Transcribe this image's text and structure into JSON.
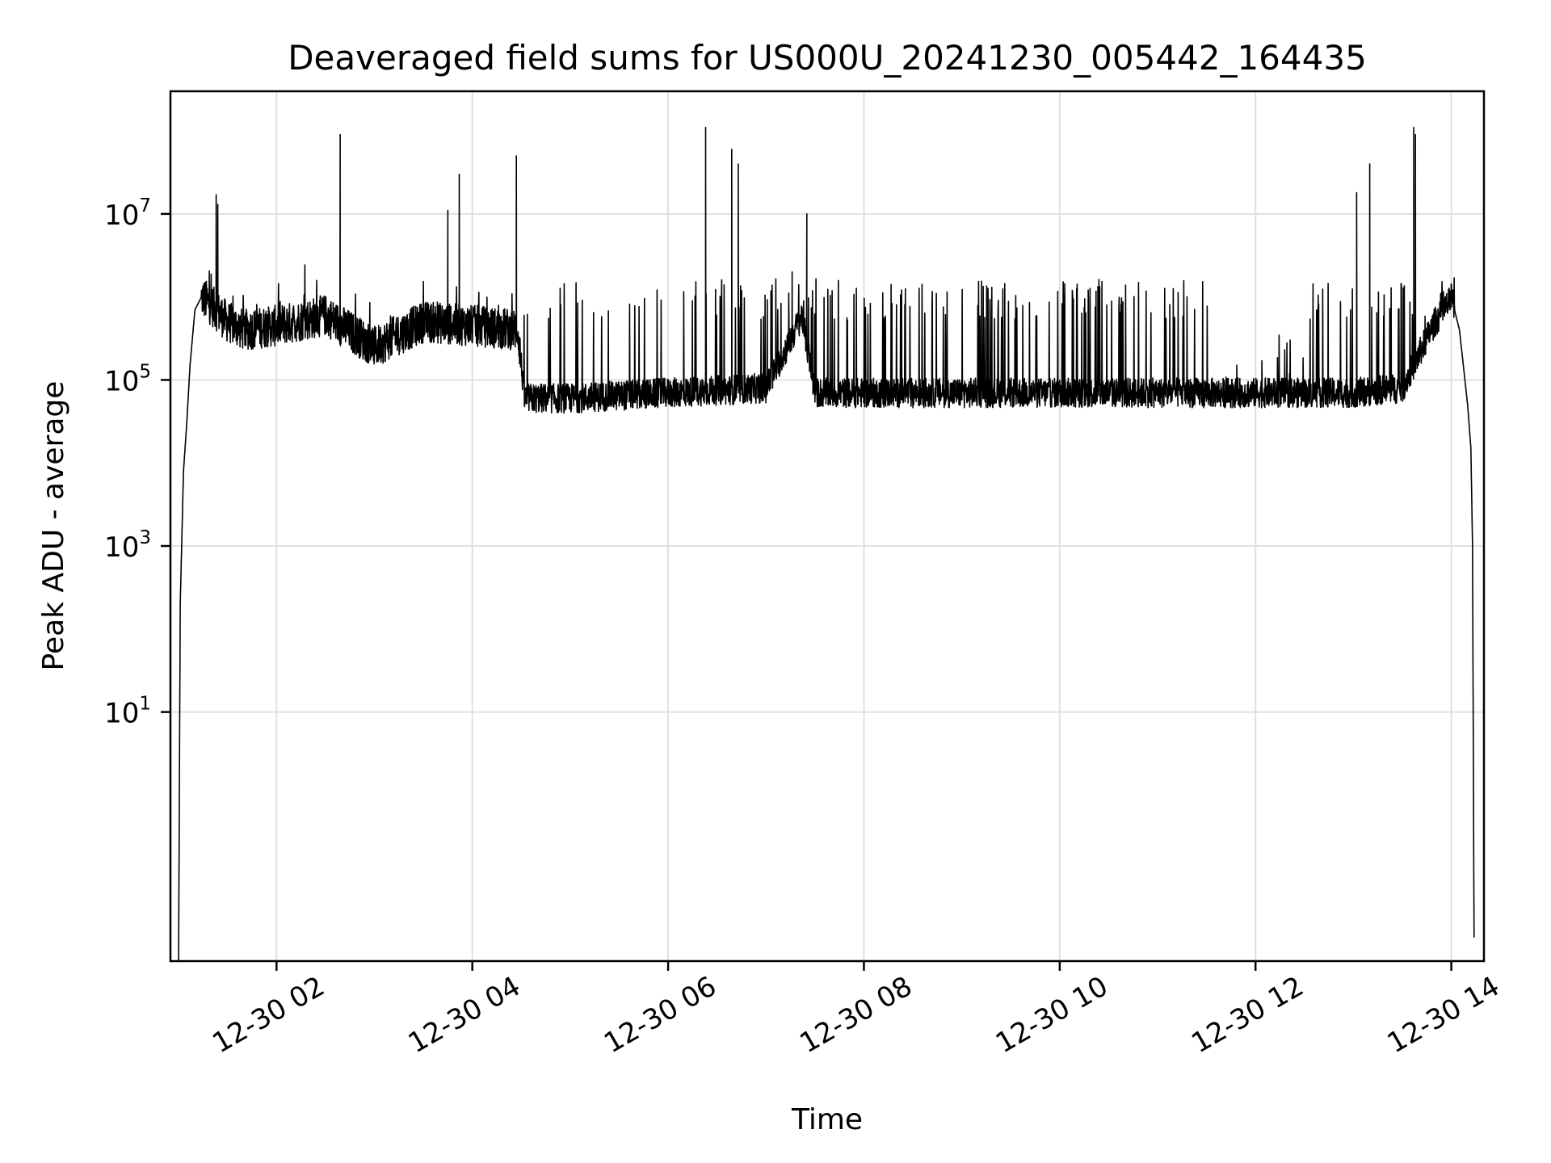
{
  "chart_data": {
    "type": "line",
    "title": "Deaveraged field sums for US000U_20241230_005442_164435",
    "xlabel": "Time",
    "ylabel": "Peak ADU - average",
    "yscale": "log",
    "xlim": [
      "2024-12-30 00:55",
      "2024-12-30 14:20"
    ],
    "ylim": [
      0.01,
      300000000
    ],
    "grid": true,
    "line_color": "#000000",
    "x_ticks": [
      "12-30 02",
      "12-30 04",
      "12-30 06",
      "12-30 08",
      "12-30 10",
      "12-30 12",
      "12-30 14"
    ],
    "x_tick_times": [
      "2024-12-30 02:00",
      "2024-12-30 04:00",
      "2024-12-30 06:00",
      "2024-12-30 08:00",
      "2024-12-30 10:00",
      "2024-12-30 12:00",
      "2024-12-30 14:00"
    ],
    "y_ticks": [
      {
        "base": "10",
        "exp": "1",
        "value": 10
      },
      {
        "base": "10",
        "exp": "3",
        "value": 1000
      },
      {
        "base": "10",
        "exp": "5",
        "value": 100000
      },
      {
        "base": "10",
        "exp": "7",
        "value": 10000000
      }
    ],
    "series": [
      {
        "x": [
          "2024-12-30 01:00",
          "2024-12-30 01:01",
          "2024-12-30 01:03",
          "2024-12-30 01:05",
          "2024-12-30 01:07",
          "2024-12-30 01:10",
          "2024-12-30 01:14",
          "2024-12-30 01:20",
          "2024-12-30 01:26",
          "2024-12-30 01:30",
          "2024-12-30 01:40",
          "2024-12-30 02:00",
          "2024-12-30 02:30",
          "2024-12-30 03:00",
          "2024-12-30 03:30",
          "2024-12-30 04:00",
          "2024-12-30 04:28",
          "2024-12-30 04:32",
          "2024-12-30 05:00",
          "2024-12-30 06:00",
          "2024-12-30 07:00",
          "2024-12-30 07:15",
          "2024-12-30 07:22",
          "2024-12-30 07:30",
          "2024-12-30 08:00",
          "2024-12-30 09:00",
          "2024-12-30 10:00",
          "2024-12-30 11:00",
          "2024-12-30 11:35",
          "2024-12-30 11:40",
          "2024-12-30 12:00",
          "2024-12-30 13:00",
          "2024-12-30 13:30",
          "2024-12-30 13:50",
          "2024-12-30 13:58",
          "2024-12-30 14:00",
          "2024-12-30 14:05",
          "2024-12-30 14:10",
          "2024-12-30 14:12",
          "2024-12-30 14:13",
          "2024-12-30 14:14"
        ],
        "y": [
          0.01,
          200,
          8000,
          30000,
          150000,
          700000,
          1000000,
          800000,
          600000,
          500000,
          400000,
          450000,
          600000,
          250000,
          500000,
          450000,
          400000,
          60000,
          60000,
          70000,
          80000,
          300000,
          600000,
          70000,
          70000,
          70000,
          70000,
          70000,
          70000,
          70000,
          70000,
          70000,
          80000,
          500000,
          800000,
          1000000,
          400000,
          50000,
          15000,
          1000,
          0.01
        ]
      }
    ],
    "spikes": [
      {
        "x": "2024-12-30 01:23",
        "y": 17000000
      },
      {
        "x": "2024-12-30 01:24",
        "y": 13000000
      },
      {
        "x": "2024-12-30 02:39",
        "y": 90000000
      },
      {
        "x": "2024-12-30 03:45",
        "y": 11000000
      },
      {
        "x": "2024-12-30 03:52",
        "y": 30000000
      },
      {
        "x": "2024-12-30 04:27",
        "y": 50000000
      },
      {
        "x": "2024-12-30 06:23",
        "y": 110000000
      },
      {
        "x": "2024-12-30 06:39",
        "y": 60000000
      },
      {
        "x": "2024-12-30 06:43",
        "y": 40000000
      },
      {
        "x": "2024-12-30 07:16",
        "y": 2000000
      },
      {
        "x": "2024-12-30 07:25",
        "y": 10000000
      },
      {
        "x": "2024-12-30 13:02",
        "y": 18000000
      },
      {
        "x": "2024-12-30 13:10",
        "y": 40000000
      },
      {
        "x": "2024-12-30 13:37",
        "y": 110000000
      },
      {
        "x": "2024-12-30 13:38",
        "y": 90000000
      }
    ]
  }
}
